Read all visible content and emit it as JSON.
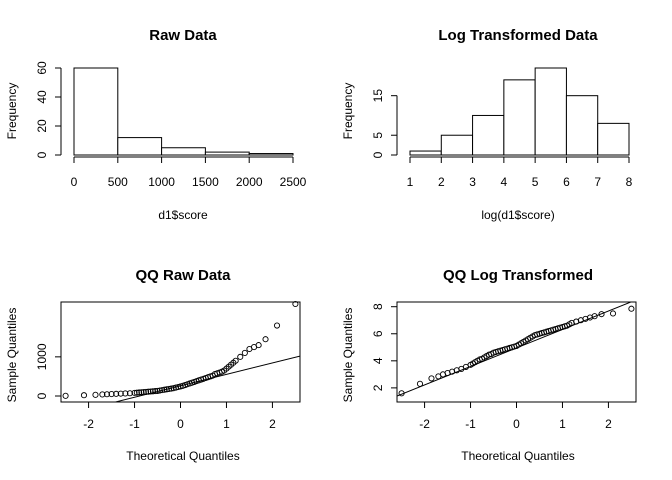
{
  "chart_data": [
    {
      "type": "bar",
      "title": "Raw Data",
      "xlabel": "d1$score",
      "ylabel": "Frequency",
      "bins": [
        [
          0,
          500
        ],
        [
          500,
          1000
        ],
        [
          1000,
          1500
        ],
        [
          1500,
          2000
        ],
        [
          2000,
          2500
        ]
      ],
      "values": [
        60,
        12,
        5,
        2,
        1
      ],
      "xlim": [
        0,
        2500
      ],
      "ylim": [
        0,
        60
      ],
      "xticks": [
        0,
        500,
        1000,
        1500,
        2000,
        2500
      ],
      "yticks": [
        0,
        20,
        40,
        60
      ],
      "grid": false,
      "legend": "none"
    },
    {
      "type": "bar",
      "title": "Log Transformed Data",
      "xlabel": "log(d1$score)",
      "ylabel": "Frequency",
      "bins": [
        [
          1,
          2
        ],
        [
          2,
          3
        ],
        [
          3,
          4
        ],
        [
          4,
          5
        ],
        [
          5,
          6
        ],
        [
          6,
          7
        ],
        [
          7,
          8
        ]
      ],
      "values": [
        1,
        5,
        10,
        19,
        22,
        15,
        8
      ],
      "xlim": [
        1,
        8
      ],
      "ylim": [
        0,
        22
      ],
      "xticks": [
        1,
        2,
        3,
        4,
        5,
        6,
        7,
        8
      ],
      "yticks": [
        0,
        5,
        15
      ],
      "grid": false,
      "legend": "none"
    },
    {
      "type": "scatter",
      "title": "QQ Raw Data",
      "xlabel": "Theoretical Quantiles",
      "ylabel": "Sample Quantiles",
      "x": [
        -2.5,
        -2.1,
        -1.85,
        -1.7,
        -1.6,
        -1.5,
        -1.4,
        -1.3,
        -1.2,
        -1.1,
        -1.0,
        -0.95,
        -0.9,
        -0.85,
        -0.8,
        -0.75,
        -0.7,
        -0.65,
        -0.6,
        -0.55,
        -0.5,
        -0.45,
        -0.4,
        -0.35,
        -0.3,
        -0.25,
        -0.2,
        -0.15,
        -0.1,
        -0.05,
        0.0,
        0.05,
        0.1,
        0.15,
        0.2,
        0.25,
        0.3,
        0.35,
        0.4,
        0.45,
        0.5,
        0.55,
        0.6,
        0.65,
        0.7,
        0.75,
        0.8,
        0.85,
        0.9,
        0.95,
        1.0,
        1.05,
        1.1,
        1.15,
        1.2,
        1.3,
        1.4,
        1.5,
        1.6,
        1.7,
        1.85,
        2.1,
        2.5
      ],
      "y": [
        5,
        20,
        30,
        40,
        45,
        50,
        55,
        60,
        65,
        70,
        80,
        85,
        90,
        95,
        100,
        105,
        110,
        115,
        120,
        125,
        130,
        140,
        150,
        160,
        170,
        180,
        190,
        200,
        215,
        230,
        245,
        260,
        280,
        300,
        320,
        340,
        360,
        380,
        400,
        420,
        440,
        460,
        480,
        500,
        520,
        560,
        580,
        600,
        620,
        650,
        700,
        750,
        800,
        850,
        900,
        1000,
        1100,
        1200,
        1250,
        1300,
        1450,
        1800,
        2350
      ],
      "reference_line": [
        [
          -2.6,
          -500
        ],
        [
          2.6,
          1020
        ]
      ],
      "xlim": [
        -2.6,
        2.6
      ],
      "ylim": [
        0,
        2350
      ],
      "xticks": [
        -2,
        -1,
        0,
        1,
        2
      ],
      "yticks": [
        0,
        1000
      ],
      "grid": false,
      "legend": "none"
    },
    {
      "type": "scatter",
      "title": "QQ Log Transformed",
      "xlabel": "Theoretical Quantiles",
      "ylabel": "Sample Quantiles",
      "x": [
        -2.5,
        -2.1,
        -1.85,
        -1.7,
        -1.6,
        -1.5,
        -1.4,
        -1.3,
        -1.2,
        -1.1,
        -1.0,
        -0.95,
        -0.9,
        -0.85,
        -0.8,
        -0.75,
        -0.7,
        -0.65,
        -0.6,
        -0.55,
        -0.5,
        -0.45,
        -0.4,
        -0.35,
        -0.3,
        -0.25,
        -0.2,
        -0.15,
        -0.1,
        -0.05,
        0.0,
        0.05,
        0.1,
        0.15,
        0.2,
        0.25,
        0.3,
        0.35,
        0.4,
        0.45,
        0.5,
        0.55,
        0.6,
        0.65,
        0.7,
        0.75,
        0.8,
        0.85,
        0.9,
        0.95,
        1.0,
        1.05,
        1.1,
        1.15,
        1.2,
        1.3,
        1.4,
        1.5,
        1.6,
        1.7,
        1.85,
        2.1,
        2.5
      ],
      "y": [
        1.6,
        2.3,
        2.7,
        2.85,
        3.0,
        3.1,
        3.2,
        3.3,
        3.4,
        3.55,
        3.7,
        3.8,
        3.9,
        4.0,
        4.1,
        4.15,
        4.25,
        4.35,
        4.45,
        4.5,
        4.6,
        4.65,
        4.7,
        4.75,
        4.8,
        4.85,
        4.9,
        4.95,
        5.0,
        5.05,
        5.1,
        5.2,
        5.3,
        5.4,
        5.5,
        5.6,
        5.7,
        5.8,
        5.9,
        5.95,
        6.0,
        6.05,
        6.1,
        6.15,
        6.2,
        6.25,
        6.3,
        6.35,
        6.4,
        6.45,
        6.5,
        6.55,
        6.6,
        6.7,
        6.8,
        6.9,
        7.0,
        7.1,
        7.2,
        7.3,
        7.45,
        7.5,
        7.85
      ],
      "reference_line": [
        [
          -2.6,
          1.4
        ],
        [
          2.6,
          8.5
        ]
      ],
      "xlim": [
        -2.6,
        2.6
      ],
      "ylim": [
        1.4,
        8.2
      ],
      "xticks": [
        -2,
        -1,
        0,
        1,
        2
      ],
      "yticks": [
        2,
        4,
        6,
        8
      ],
      "grid": false,
      "legend": "none"
    }
  ]
}
